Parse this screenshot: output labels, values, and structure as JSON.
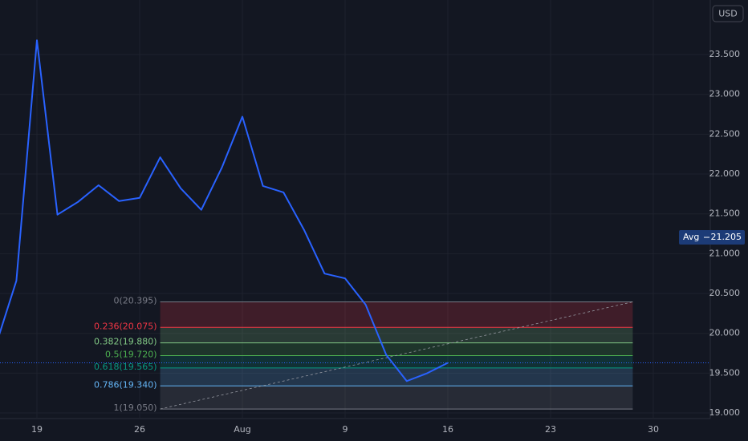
{
  "chart_data": {
    "type": "line",
    "categories": [
      null,
      null,
      "19",
      null,
      null,
      null,
      null,
      "26",
      null,
      null,
      null,
      null,
      "Aug",
      null,
      null,
      null,
      null,
      "9",
      null,
      null,
      null,
      null,
      "16",
      null,
      null,
      null,
      null,
      "23",
      null,
      null,
      null,
      null,
      "30",
      null,
      null
    ],
    "series": [
      {
        "color": "#2962ff",
        "values": [
          19.85,
          20.66,
          23.68,
          21.49,
          21.65,
          21.86,
          21.66,
          21.7,
          22.21,
          21.82,
          21.55,
          22.08,
          22.72,
          21.85,
          21.77,
          21.3,
          20.75,
          20.69,
          20.36,
          19.73,
          19.4,
          19.5,
          19.63,
          null,
          null,
          null,
          null,
          null,
          null,
          null,
          null,
          null,
          null,
          null,
          null
        ]
      }
    ],
    "ylim": [
      18.93,
      24.185
    ],
    "yticks": [
      {
        "value": 19,
        "label": "19.000"
      },
      {
        "value": 19.5,
        "label": "19.500"
      },
      {
        "value": 20,
        "label": "20.000"
      },
      {
        "value": 20.5,
        "label": "20.500"
      },
      {
        "value": 21,
        "label": "21.000"
      },
      {
        "value": 21.5,
        "label": "21.500"
      },
      {
        "value": 22,
        "label": "22.000"
      },
      {
        "value": 22.5,
        "label": "22.500"
      },
      {
        "value": 23,
        "label": "23.000"
      },
      {
        "value": 23.5,
        "label": "23.500"
      }
    ],
    "grid": true,
    "currency": "USD",
    "avg": {
      "label": "Avg",
      "value": 21.205
    },
    "fib": {
      "start": 8,
      "end": 31,
      "levels": [
        {
          "label": "0(20.395)",
          "price": 20.395,
          "color": "#787b86"
        },
        {
          "label": "0.236(20.075)",
          "price": 20.075,
          "color": "#f23645"
        },
        {
          "label": "0.382(19.880)",
          "price": 19.88,
          "color": "#81c784"
        },
        {
          "label": "0.5(19.720)",
          "price": 19.72,
          "color": "#4caf50"
        },
        {
          "label": "0.618(19.565)",
          "price": 19.565,
          "color": "#089981"
        },
        {
          "label": "0.786(19.340)",
          "price": 19.34,
          "color": "#64b5f6"
        },
        {
          "label": "1(19.050)",
          "price": 19.05,
          "color": "#787b86"
        }
      ]
    }
  }
}
